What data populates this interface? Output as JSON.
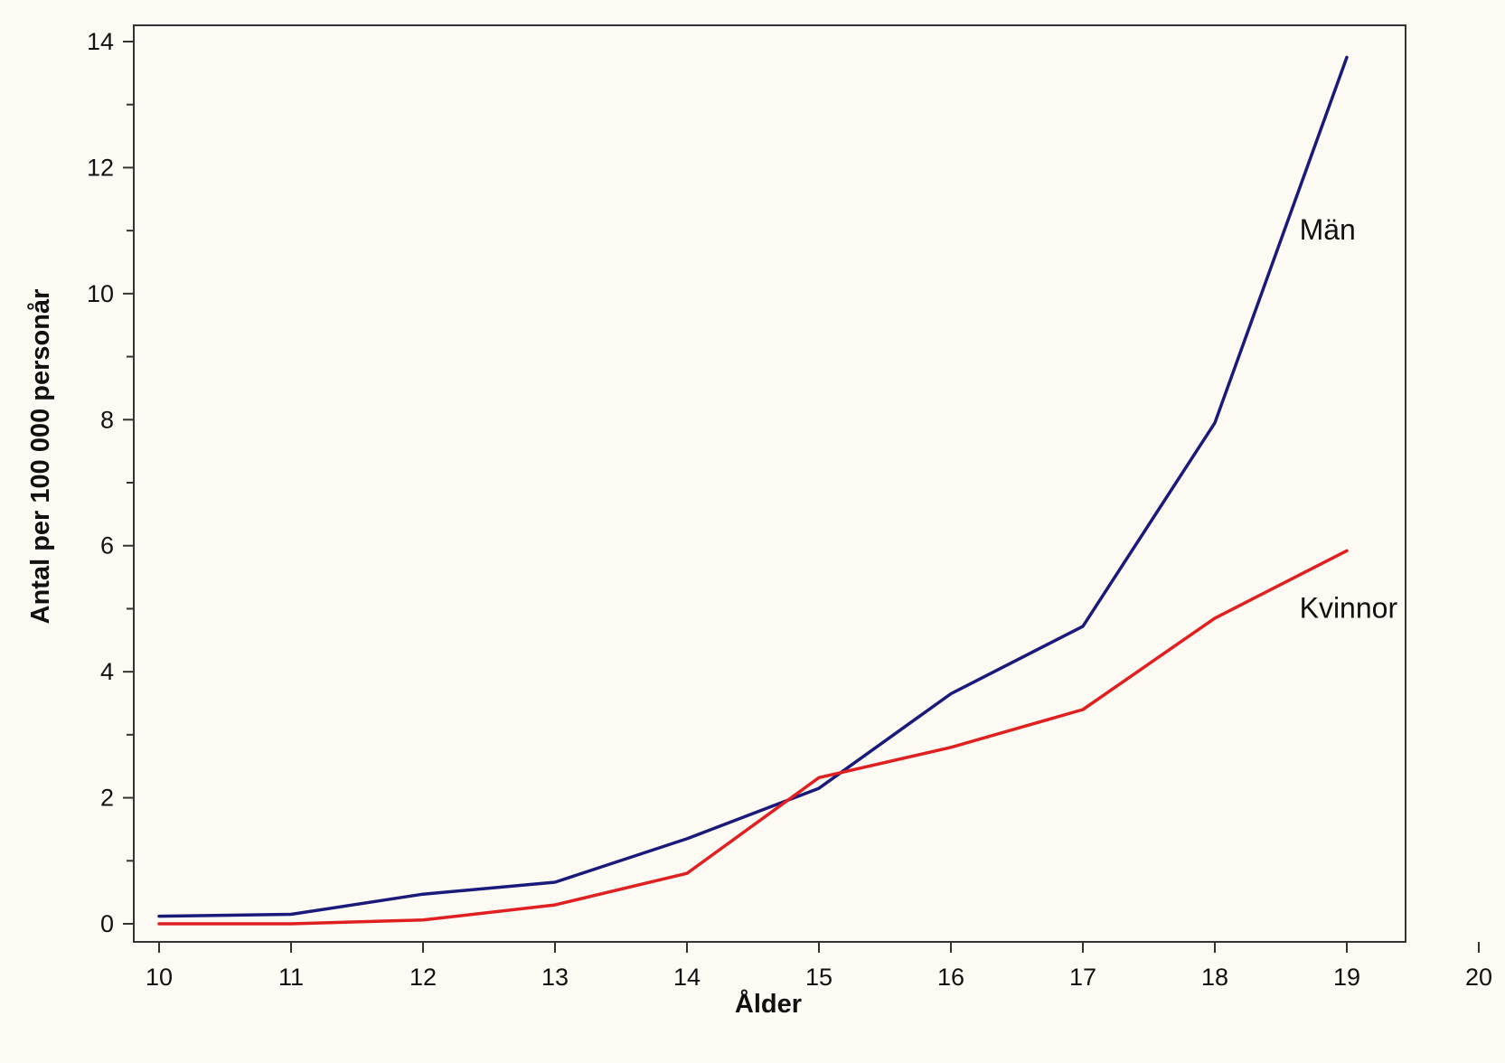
{
  "chart_data": {
    "type": "line",
    "xlabel": "Ålder",
    "ylabel": "Antal per 100 000 personår",
    "xlim": [
      10,
      20
    ],
    "ylim": [
      0,
      14
    ],
    "x_ticks": [
      10,
      11,
      12,
      13,
      14,
      15,
      16,
      17,
      18,
      19,
      20
    ],
    "y_ticks": [
      0,
      2,
      4,
      6,
      8,
      10,
      12,
      14
    ],
    "grid": false,
    "legend": "none",
    "series": [
      {
        "name": "Män",
        "color": "#1a1a7a",
        "x": [
          10,
          11,
          12,
          13,
          14,
          15,
          16,
          17,
          18,
          19
        ],
        "values": [
          0.12,
          0.15,
          0.47,
          0.66,
          1.35,
          2.15,
          3.65,
          4.72,
          7.95,
          13.75
        ],
        "label_at": {
          "x": 18.6,
          "y": 11
        }
      },
      {
        "name": "Kvinnor",
        "color": "#e02020",
        "x": [
          10,
          11,
          12,
          13,
          14,
          15,
          16,
          17,
          18,
          19
        ],
        "values": [
          0.0,
          0.0,
          0.06,
          0.3,
          0.8,
          2.32,
          2.8,
          3.4,
          4.85,
          5.92
        ],
        "label_at": {
          "x": 18.6,
          "y": 5
        }
      }
    ]
  }
}
